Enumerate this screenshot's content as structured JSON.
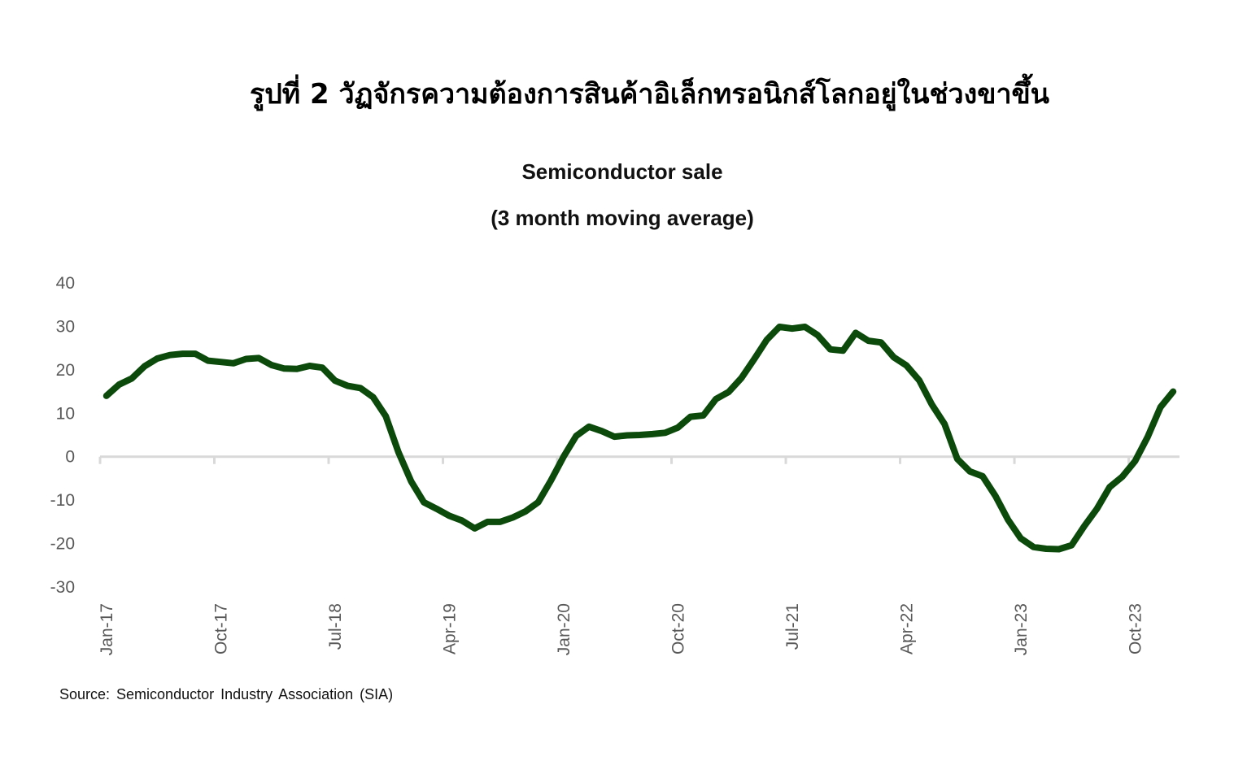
{
  "figure_title": "รูปที่ 2 วัฏจักรความต้องการสินค้าอิเล็กทรอนิกส์โลกอยู่ในช่วงขาขึ้น",
  "source": "Source: Semiconductor Industry Association (SIA)",
  "colors": {
    "line": "#0b4a0b",
    "axis": "#d9d9d9",
    "tick_label": "#595959"
  },
  "chart_data": {
    "type": "line",
    "title": "Semiconductor sale",
    "subtitle": "(3 month moving average)",
    "ylim": [
      -30,
      40
    ],
    "y_ticks": [
      40,
      30,
      20,
      10,
      0,
      -10,
      -20,
      -30
    ],
    "x_tick_labels": [
      "Jan-17",
      "Oct-17",
      "Jul-18",
      "Apr-19",
      "Jan-20",
      "Oct-20",
      "Jul-21",
      "Apr-22",
      "Jan-23",
      "Oct-23"
    ],
    "x_start": "Jan-17",
    "x_end": "Dec-23",
    "grid": false,
    "legend": "none",
    "series": [
      {
        "values": [
          14.0,
          16.6,
          18.0,
          20.8,
          22.6,
          23.4,
          23.7,
          23.7,
          22.1,
          21.8,
          21.5,
          22.5,
          22.7,
          21.1,
          20.3,
          20.2,
          20.9,
          20.5,
          17.5,
          16.3,
          15.8,
          13.7,
          9.3,
          1.0,
          -5.7,
          -10.5,
          -12.0,
          -13.6,
          -14.7,
          -16.5,
          -15.0,
          -15.0,
          -14.0,
          -12.6,
          -10.5,
          -5.5,
          0.0,
          4.8,
          6.9,
          5.9,
          4.6,
          4.9,
          5.0,
          5.2,
          5.5,
          6.7,
          9.2,
          9.5,
          13.3,
          14.9,
          18.1,
          22.4,
          26.9,
          29.9,
          29.5,
          29.9,
          28.0,
          24.7,
          24.4,
          28.5,
          26.7,
          26.3,
          22.9,
          21.0,
          17.6,
          12.0,
          7.5,
          -0.5,
          -3.4,
          -4.5,
          -9.0,
          -14.5,
          -18.8,
          -20.8,
          -21.2,
          -21.3,
          -20.4,
          -16.0,
          -12.0,
          -7.0,
          -4.6,
          -1.0,
          4.6,
          11.4,
          15.0
        ]
      }
    ]
  }
}
